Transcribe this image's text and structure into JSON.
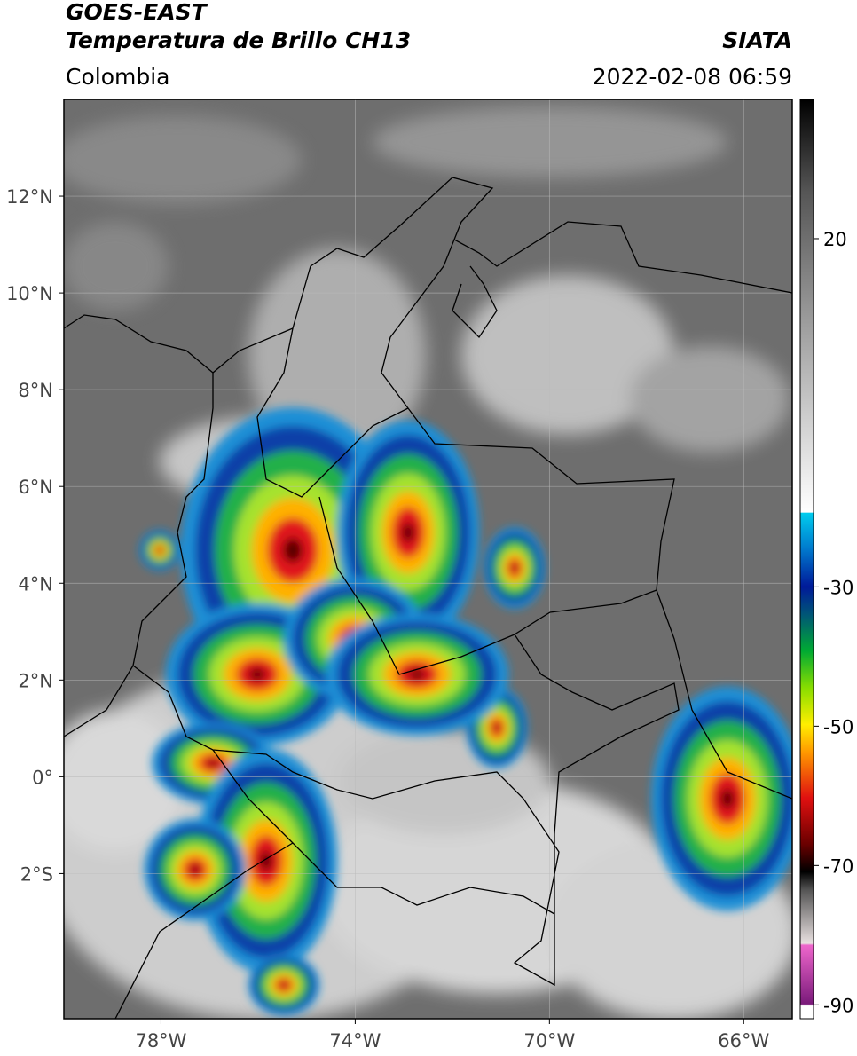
{
  "header": {
    "title": "GOES-EAST",
    "subtitle": "Temperatura de Brillo CH13",
    "source": "SIATA",
    "region": "Colombia",
    "datetime": "2022-02-08 06:59"
  },
  "map": {
    "xlim": [
      -80,
      -65
    ],
    "ylim": [
      -5,
      14
    ],
    "xticks": [
      {
        "value": -78,
        "label": "78°W"
      },
      {
        "value": -74,
        "label": "74°W"
      },
      {
        "value": -70,
        "label": "70°W"
      },
      {
        "value": -66,
        "label": "66°W"
      }
    ],
    "yticks": [
      {
        "value": -2,
        "label": "2°S"
      },
      {
        "value": 0,
        "label": "0°"
      },
      {
        "value": 2,
        "label": "2°N"
      },
      {
        "value": 4,
        "label": "4°N"
      },
      {
        "value": 6,
        "label": "6°N"
      },
      {
        "value": 8,
        "label": "8°N"
      },
      {
        "value": 10,
        "label": "10°N"
      },
      {
        "value": 12,
        "label": "12°N"
      }
    ],
    "grid": true
  },
  "colorbar": {
    "lim": [
      -92,
      40
    ],
    "ticks": [
      -90,
      -70,
      -50,
      -30,
      20
    ]
  }
}
